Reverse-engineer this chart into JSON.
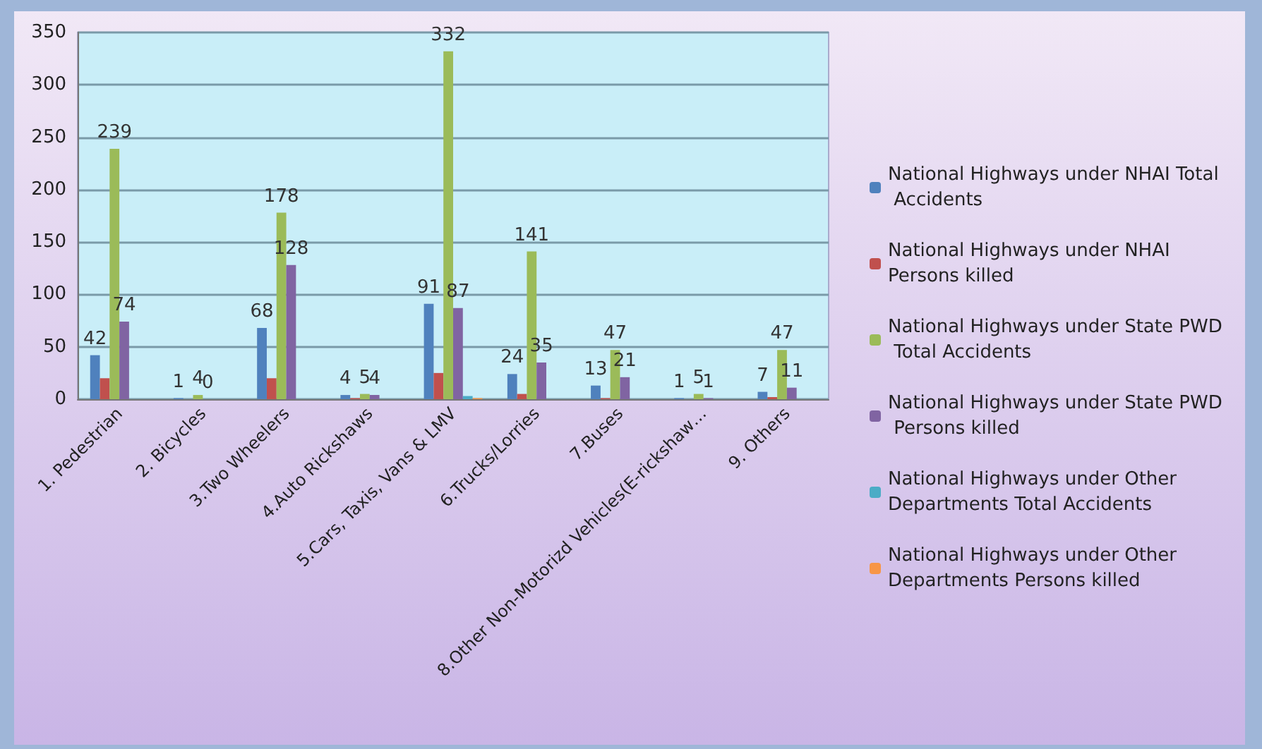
{
  "chart_data": {
    "type": "bar",
    "categories": [
      "1. Pedestrian",
      "2. Bicycles",
      "3.Two Wheelers",
      "4.Auto Rickshaws",
      "5.Cars, Taxis, Vans & LMV",
      "6.Trucks/Lorries",
      "7.Buses",
      "8.Other Non-Motorizd Vehicles(E-rickshaw…",
      "9. Others"
    ],
    "series": [
      {
        "name": "National Highways under NHAI Total Accidents",
        "color": "#4f81bd",
        "values": [
          42,
          1,
          68,
          4,
          91,
          24,
          13,
          1,
          7
        ],
        "value_labels": [
          "42",
          "1",
          "68",
          "4",
          "91",
          "24",
          "13",
          "1",
          "7"
        ]
      },
      {
        "name": "National Highways under NHAI Persons killed",
        "color": "#c0504d",
        "values": [
          20,
          0,
          20,
          1,
          25,
          5,
          1,
          0,
          2
        ]
      },
      {
        "name": "National Highways under State PWD Total Accidents",
        "color": "#9bbb59",
        "values": [
          239,
          4,
          178,
          5,
          332,
          141,
          47,
          5,
          47
        ],
        "value_labels": [
          "239",
          "4",
          "178",
          "5",
          "332",
          "141",
          "47",
          "5",
          "47"
        ]
      },
      {
        "name": "National Highways under State PWD Persons killed",
        "color": "#8064a2",
        "values": [
          74,
          0,
          128,
          4,
          87,
          35,
          21,
          1,
          11
        ],
        "value_labels": [
          "74",
          "0",
          "128",
          "4",
          "87",
          "35",
          "21",
          "1",
          "11"
        ]
      },
      {
        "name": "National Highways under Other Departments Total Accidents",
        "color": "#4bacc6",
        "values": [
          0,
          0,
          0,
          0,
          3,
          0,
          0,
          0,
          0
        ]
      },
      {
        "name": "National Highways under Other Departments Persons killed",
        "color": "#f79646",
        "values": [
          0,
          0,
          0,
          0,
          1,
          0,
          0,
          0,
          0
        ]
      }
    ],
    "ylim": [
      0,
      350
    ],
    "yticks": [
      0,
      50,
      100,
      150,
      200,
      250,
      300,
      350
    ],
    "grid": "y",
    "legend": "right"
  }
}
